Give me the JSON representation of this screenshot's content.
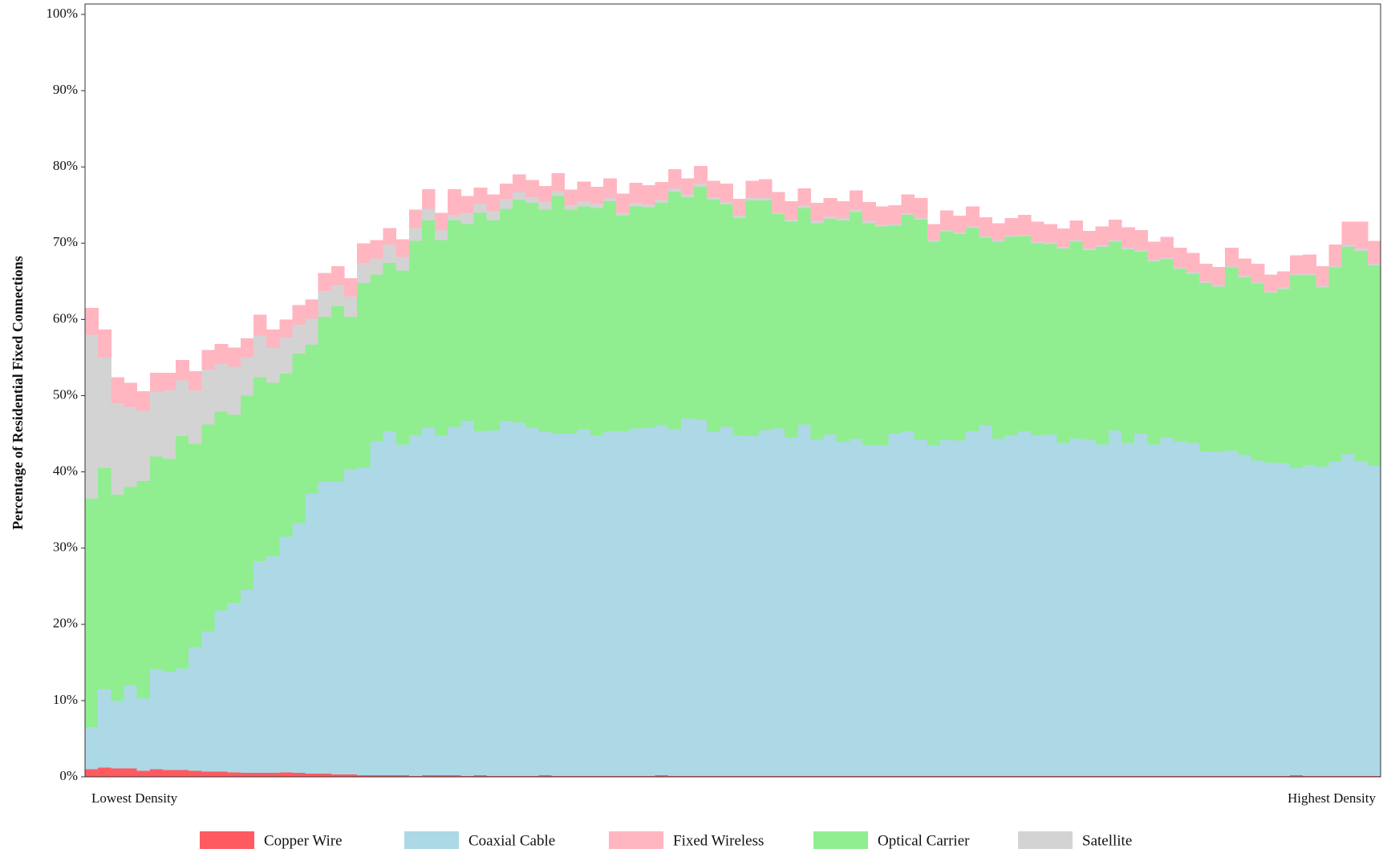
{
  "chart_data": {
    "type": "stacked_step_area",
    "ylabel": "Percentage of Residential Fixed Connections",
    "ylim": [
      0,
      100
    ],
    "yticks": [
      {
        "value": 0,
        "label": "0%"
      },
      {
        "value": 10,
        "label": "10%"
      },
      {
        "value": 20,
        "label": "20%"
      },
      {
        "value": 30,
        "label": "30%"
      },
      {
        "value": 40,
        "label": "40%"
      },
      {
        "value": 50,
        "label": "50%"
      },
      {
        "value": 60,
        "label": "60%"
      },
      {
        "value": 70,
        "label": "70%"
      },
      {
        "value": 80,
        "label": "80%"
      },
      {
        "value": 90,
        "label": "90%"
      },
      {
        "value": 100,
        "label": "100%"
      }
    ],
    "categories": [
      "Lowest Density",
      null,
      null,
      null,
      null,
      null,
      null,
      null,
      null,
      null,
      null,
      null,
      null,
      null,
      null,
      null,
      null,
      null,
      null,
      null,
      null,
      null,
      null,
      null,
      null,
      null,
      null,
      null,
      null,
      null,
      null,
      null,
      null,
      null,
      null,
      null,
      null,
      null,
      null,
      null,
      null,
      null,
      null,
      null,
      null,
      null,
      null,
      null,
      null,
      null,
      null,
      null,
      null,
      null,
      null,
      null,
      null,
      null,
      null,
      null,
      null,
      null,
      null,
      null,
      null,
      null,
      null,
      null,
      null,
      null,
      null,
      null,
      null,
      null,
      null,
      null,
      null,
      null,
      null,
      null,
      null,
      null,
      null,
      null,
      null,
      null,
      null,
      null,
      null,
      null,
      null,
      null,
      null,
      null,
      null,
      null,
      null,
      null,
      null,
      "Highest Density"
    ],
    "legend": "bottom",
    "series": [
      {
        "name": "Copper Wire",
        "color": "#ff5a5f",
        "values": [
          1,
          1.2,
          1.1,
          1.1,
          0.8,
          1,
          0.9,
          0.9,
          0.8,
          0.7,
          0.7,
          0.6,
          0.5,
          0.5,
          0.5,
          0.6,
          0.5,
          0.4,
          0.4,
          0.3,
          0.3,
          0.2,
          0.2,
          0.2,
          0.2,
          0.1,
          0.2,
          0.2,
          0.2,
          0.1,
          0.2,
          0.1,
          0.1,
          0.1,
          0.1,
          0.2,
          0.1,
          0.1,
          0.1,
          0.1,
          0.1,
          0.1,
          0.1,
          0.1,
          0.2,
          0.1,
          0.1,
          0.1,
          0.1,
          0.1,
          0.1,
          0.1,
          0.1,
          0.1,
          0.1,
          0.1,
          0.1,
          0.1,
          0.1,
          0.1,
          0.1,
          0.1,
          0.1,
          0.1,
          0.1,
          0.1,
          0.1,
          0.1,
          0.1,
          0.1,
          0.1,
          0.1,
          0.1,
          0.1,
          0.1,
          0.1,
          0.1,
          0.1,
          0.1,
          0.1,
          0.1,
          0.1,
          0.1,
          0.1,
          0.1,
          0.1,
          0.1,
          0.1,
          0.1,
          0.1,
          0.1,
          0.1,
          0.1,
          0.2,
          0.1,
          0.1,
          0.1,
          0.1,
          0.1,
          0.1
        ]
      },
      {
        "name": "Coaxial Cable",
        "color": "#add8e6",
        "values": [
          5.5,
          10.3,
          8.9,
          10.9,
          9.5,
          13.1,
          12.9,
          13.3,
          16.2,
          18.4,
          21.1,
          22.2,
          24,
          27.8,
          28.4,
          30.9,
          32.8,
          36.7,
          38.3,
          38.4,
          40,
          40.4,
          43.8,
          45.1,
          43.4,
          44.7,
          45.6,
          44.6,
          45.7,
          46.6,
          45.1,
          45.3,
          46.6,
          46.4,
          45.7,
          45,
          44.9,
          44.9,
          45.5,
          44.7,
          45.2,
          45.2,
          45.6,
          45.7,
          45.9,
          45.5,
          46.9,
          46.7,
          45.1,
          45.8,
          44.7,
          44.6,
          45.4,
          45.6,
          44.4,
          46.1,
          44.1,
          44.8,
          43.8,
          44.2,
          43.4,
          43.4,
          44.9,
          45.2,
          44.1,
          43.4,
          44.1,
          44,
          45.2,
          46,
          44.2,
          44.7,
          45.2,
          44.7,
          44.8,
          43.7,
          44.3,
          44.1,
          43.5,
          45.3,
          43.7,
          44.9,
          43.5,
          44.4,
          43.9,
          43.7,
          42.6,
          42.5,
          42.7,
          42.1,
          41.4,
          41.1,
          41,
          40.3,
          40.8,
          40.6,
          41.2,
          42.2,
          41.3,
          40.7
        ]
      },
      {
        "name": "Fixed Wireless",
        "color": "#ffb6c1",
        "values": [
          3.5,
          3.7,
          3.4,
          3.2,
          2.6,
          2.5,
          2.3,
          2.7,
          2.5,
          2.6,
          2.6,
          2.5,
          2.5,
          2.7,
          2.4,
          2.4,
          2.6,
          2.5,
          2.4,
          2.5,
          2.4,
          2.6,
          2.4,
          2.2,
          2.3,
          2.4,
          2.6,
          2.3,
          3.4,
          2.2,
          2.1,
          2.2,
          2,
          2.3,
          2.3,
          2.1,
          2.4,
          2,
          2.6,
          2.2,
          2.6,
          2.5,
          2.6,
          2.5,
          2.3,
          2.5,
          2.1,
          2.3,
          2.2,
          2.4,
          2.2,
          2.3,
          2.5,
          2.7,
          2.4,
          2.3,
          2.4,
          2.4,
          2.2,
          2.5,
          2.5,
          2.4,
          2.5,
          2.5,
          2.6,
          2.1,
          2.6,
          2.2,
          2.6,
          2.5,
          2.2,
          2.3,
          2.6,
          2.6,
          2.4,
          2.4,
          2.6,
          2.3,
          2.5,
          2.7,
          2.7,
          2.6,
          2.4,
          2.7,
          2.6,
          2.5,
          2.3,
          2.4,
          2.4,
          2.3,
          2.4,
          2.2,
          2.1,
          2.4,
          2.5,
          2.6,
          2.8,
          3,
          3.5,
          3
        ]
      },
      {
        "name": "Optical Carrier",
        "color": "#90ee90",
        "values": [
          30,
          29,
          27,
          26,
          28.5,
          27.9,
          27.9,
          30.5,
          26.7,
          27.1,
          26.1,
          24.7,
          25.5,
          24.1,
          22.8,
          21.4,
          22.2,
          19.6,
          21.6,
          23,
          20,
          24.2,
          21.9,
          22.1,
          22.8,
          25.5,
          27.2,
          25.6,
          27.1,
          25.8,
          28.7,
          27.6,
          27.8,
          29.2,
          29.5,
          29.2,
          31.2,
          29.4,
          29.2,
          29.8,
          30.2,
          28.3,
          29.1,
          28.9,
          29.2,
          31.1,
          29,
          30.6,
          30.5,
          29.2,
          28.5,
          30.9,
          30.1,
          28.1,
          28.3,
          28.4,
          28.4,
          28.3,
          29.1,
          29.8,
          29.1,
          28.7,
          27.3,
          28.4,
          28.9,
          26.7,
          27.3,
          27.1,
          26.7,
          24.6,
          25.9,
          26,
          25.6,
          25.2,
          25,
          25.5,
          25.8,
          24.9,
          25.9,
          24.8,
          25.4,
          23.9,
          24,
          23.4,
          22.6,
          22.2,
          22.1,
          21.7,
          24,
          23.3,
          23.2,
          22.3,
          22.9,
          25.3,
          24.9,
          23.5,
          25.5,
          27.2,
          27.6,
          26.3
        ]
      },
      {
        "name": "Satellite",
        "color": "#d3d3d3",
        "values": [
          21.5,
          14.5,
          12,
          10.5,
          9.2,
          8.5,
          9,
          7.3,
          7,
          7.2,
          6.3,
          6.3,
          5,
          5.5,
          4.6,
          4.7,
          3.8,
          3.4,
          3.4,
          2.8,
          2.7,
          2.6,
          2.1,
          2.4,
          1.8,
          1.7,
          1.5,
          1.3,
          0.7,
          1.5,
          1.2,
          1.2,
          1.3,
          1,
          0.7,
          1,
          0.6,
          0.6,
          0.7,
          0.6,
          0.4,
          0.4,
          0.5,
          0.4,
          0.4,
          0.5,
          0.4,
          0.4,
          0.3,
          0.3,
          0.3,
          0.3,
          0.3,
          0.2,
          0.3,
          0.3,
          0.3,
          0.3,
          0.3,
          0.3,
          0.3,
          0.2,
          0.2,
          0.2,
          0.2,
          0.2,
          0.2,
          0.2,
          0.2,
          0.2,
          0.2,
          0.2,
          0.2,
          0.2,
          0.2,
          0.2,
          0.2,
          0.2,
          0.2,
          0.2,
          0.2,
          0.2,
          0.2,
          0.2,
          0.2,
          0.2,
          0.2,
          0.2,
          0.2,
          0.2,
          0.2,
          0.2,
          0.2,
          0.2,
          0.2,
          0.2,
          0.2,
          0.3,
          0.3,
          0.2
        ]
      }
    ]
  }
}
